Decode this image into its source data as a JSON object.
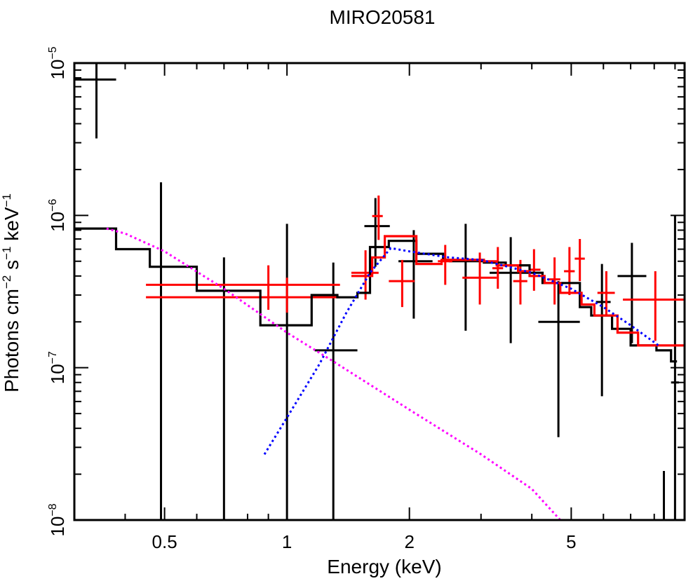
{
  "chart_data": {
    "type": "scatter",
    "title": "MIRO20581",
    "xlabel": "Energy (keV)",
    "ylabel": {
      "prefix": "Photons cm",
      "cm_exp": "−2",
      "s_part": " s",
      "s_exp": "−1",
      "kev_part": " keV",
      "kev_exp": "−1"
    },
    "x_scale": "log",
    "y_scale": "log",
    "xlim": [
      0.3,
      9.5
    ],
    "ylim": [
      1e-08,
      1e-05
    ],
    "x_ticks": [
      {
        "value": 0.5,
        "label": "0.5"
      },
      {
        "value": 1,
        "label": "1"
      },
      {
        "value": 2,
        "label": "2"
      },
      {
        "value": 5,
        "label": "5"
      }
    ],
    "y_ticks": [
      {
        "value": 1e-08,
        "base": "10",
        "exp": "−8"
      },
      {
        "value": 1e-07,
        "base": "10",
        "exp": "−7"
      },
      {
        "value": 1e-06,
        "base": "10",
        "exp": "−6"
      },
      {
        "value": 1e-05,
        "base": "10",
        "exp": "−5"
      }
    ],
    "series": [
      {
        "name": "data-black",
        "kind": "crosses",
        "color": "#000000",
        "points": [
          {
            "x": 0.34,
            "xlo": 0.3,
            "xhi": 0.38,
            "y": 7.8e-06,
            "ylo": 3.2e-06,
            "yhi": 1e-05
          },
          {
            "x": 0.49,
            "xlo": 0.49,
            "xhi": 0.49,
            "y": 5.8e-07,
            "ylo": 1e-08,
            "yhi": 1.65e-06
          },
          {
            "x": 0.7,
            "xlo": 0.7,
            "xhi": 0.7,
            "y": 3.2e-07,
            "ylo": 1e-08,
            "yhi": 5.3e-07
          },
          {
            "x": 1.0,
            "xlo": 1.0,
            "xhi": 1.0,
            "y": 2.9e-07,
            "ylo": 1e-08,
            "yhi": 8.8e-07
          },
          {
            "x": 1.3,
            "xlo": 1.17,
            "xhi": 1.49,
            "y": 1.3e-07,
            "ylo": 1e-08,
            "yhi": 4.9e-07
          },
          {
            "x": 1.65,
            "xlo": 1.55,
            "xhi": 1.79,
            "y": 8.5e-07,
            "ylo": 4.6e-07,
            "yhi": 1.3e-06
          },
          {
            "x": 2.05,
            "xlo": 1.88,
            "xhi": 2.28,
            "y": 5e-07,
            "ylo": 2.1e-07,
            "yhi": 8e-07
          },
          {
            "x": 2.75,
            "xlo": 2.5,
            "xhi": 3.05,
            "y": 5e-07,
            "ylo": 1.75e-07,
            "yhi": 8.8e-07
          },
          {
            "x": 3.55,
            "xlo": 3.15,
            "xhi": 3.95,
            "y": 4.2e-07,
            "ylo": 1.45e-07,
            "yhi": 7.2e-07
          },
          {
            "x": 4.65,
            "xlo": 4.15,
            "xhi": 5.25,
            "y": 2e-07,
            "ylo": 3.5e-08,
            "yhi": 3.7e-07
          },
          {
            "x": 5.95,
            "xlo": 5.75,
            "xhi": 6.25,
            "y": 2.7e-07,
            "ylo": 6.5e-08,
            "yhi": 4.8e-07
          },
          {
            "x": 7.05,
            "xlo": 6.5,
            "xhi": 7.65,
            "y": 4e-07,
            "ylo": 1.45e-07,
            "yhi": 6.6e-07
          },
          {
            "x": 8.45,
            "xlo": 8.45,
            "xhi": 8.45,
            "y": 1e-08,
            "ylo": 1e-08,
            "yhi": 2.1e-08
          },
          {
            "x": 9.0,
            "xlo": 8.8,
            "xhi": 9.2,
            "y": 8e-08,
            "ylo": 1e-08,
            "yhi": 1e-06
          }
        ]
      },
      {
        "name": "data-red",
        "kind": "crosses",
        "color": "#ff0000",
        "points": [
          {
            "x": 0.9,
            "xlo": 0.45,
            "xhi": 1.35,
            "y": 3.5e-07,
            "ylo": 2.4e-07,
            "yhi": 4.7e-07
          },
          {
            "x": 1.0,
            "xlo": 0.45,
            "xhi": 1.35,
            "y": 2.9e-07,
            "ylo": 2.3e-07,
            "yhi": 3.9e-07
          },
          {
            "x": 1.56,
            "xlo": 1.44,
            "xhi": 1.68,
            "y": 4.2e-07,
            "ylo": 2.8e-07,
            "yhi": 5.9e-07
          },
          {
            "x": 1.68,
            "xlo": 1.62,
            "xhi": 1.72,
            "y": 9.9e-07,
            "ylo": 6.9e-07,
            "yhi": 1.35e-06
          },
          {
            "x": 1.92,
            "xlo": 1.78,
            "xhi": 2.06,
            "y": 3.7e-07,
            "ylo": 2.5e-07,
            "yhi": 5.1e-07
          },
          {
            "x": 2.45,
            "xlo": 2.35,
            "xhi": 2.55,
            "y": 5e-07,
            "ylo": 3.5e-07,
            "yhi": 6.4e-07
          },
          {
            "x": 2.98,
            "xlo": 2.7,
            "xhi": 3.28,
            "y": 3.9e-07,
            "ylo": 2.6e-07,
            "yhi": 5.7e-07
          },
          {
            "x": 3.3,
            "xlo": 3.2,
            "xhi": 3.4,
            "y": 4.5e-07,
            "ylo": 3.3e-07,
            "yhi": 6.2e-07
          },
          {
            "x": 3.75,
            "xlo": 3.6,
            "xhi": 3.9,
            "y": 3.7e-07,
            "ylo": 2.6e-07,
            "yhi": 5.1e-07
          },
          {
            "x": 4.05,
            "xlo": 3.95,
            "xhi": 4.2,
            "y": 4.4e-07,
            "ylo": 3.2e-07,
            "yhi": 6e-07
          },
          {
            "x": 4.55,
            "xlo": 4.4,
            "xhi": 4.7,
            "y": 3.8e-07,
            "ylo": 2.6e-07,
            "yhi": 5.3e-07
          },
          {
            "x": 4.95,
            "xlo": 4.8,
            "xhi": 5.1,
            "y": 4.3e-07,
            "ylo": 3e-07,
            "yhi": 6.2e-07
          },
          {
            "x": 5.25,
            "xlo": 5.1,
            "xhi": 5.4,
            "y": 5.2e-07,
            "ylo": 3.7e-07,
            "yhi": 7e-07
          },
          {
            "x": 6.1,
            "xlo": 5.8,
            "xhi": 6.4,
            "y": 3.1e-07,
            "ylo": 2.2e-07,
            "yhi": 4.3e-07
          },
          {
            "x": 8.05,
            "xlo": 6.7,
            "xhi": 9.5,
            "y": 2.8e-07,
            "ylo": 1.5e-07,
            "yhi": 4.3e-07
          }
        ]
      },
      {
        "name": "model-black",
        "kind": "step",
        "color": "#000000",
        "x_edges": [
          0.3,
          0.38,
          0.46,
          0.6,
          0.86,
          1.15,
          1.33,
          1.49,
          1.6,
          1.78,
          2.08,
          2.42,
          3.05,
          3.45,
          3.95,
          4.25,
          5.25,
          5.6,
          6.3,
          7.0,
          8.1,
          8.8,
          9.1
        ],
        "values": [
          8.2e-07,
          6e-07,
          4.6e-07,
          3.2e-07,
          1.9e-07,
          3e-07,
          2.9e-07,
          3.1e-07,
          6.2e-07,
          6.8e-07,
          5.6e-07,
          5.1e-07,
          4.9e-07,
          4.7e-07,
          4.2e-07,
          3.6e-07,
          2.5e-07,
          2.2e-07,
          1.8e-07,
          1.4e-07,
          1.3e-07,
          1.1e-07
        ]
      },
      {
        "name": "model-red",
        "kind": "step",
        "color": "#ff0000",
        "x_edges": [
          1.44,
          1.62,
          1.74,
          2.08,
          2.4,
          3.05,
          3.28,
          3.7,
          3.95,
          4.3,
          4.7,
          5.3,
          5.7,
          6.5,
          7.3,
          8.5,
          9.5
        ],
        "values": [
          4e-07,
          5.3e-07,
          7.3e-07,
          4.8e-07,
          5.1e-07,
          5e-07,
          4.7e-07,
          4.3e-07,
          4e-07,
          3.6e-07,
          3.1e-07,
          2.6e-07,
          2.2e-07,
          1.7e-07,
          1.4e-07,
          1.4e-07
        ]
      },
      {
        "name": "component-magenta",
        "kind": "dotted-line",
        "color": "#ff00ff",
        "points": [
          [
            0.36,
            8.2e-07
          ],
          [
            0.4,
            7.6e-07
          ],
          [
            0.5,
            5.8e-07
          ],
          [
            0.7,
            3.3e-07
          ],
          [
            1.0,
            1.7e-07
          ],
          [
            1.3,
            1.1e-07
          ],
          [
            2.0,
            5.3e-08
          ],
          [
            3.0,
            2.7e-08
          ],
          [
            4.0,
            1.6e-08
          ],
          [
            4.7,
            1e-08
          ]
        ]
      },
      {
        "name": "component-blue",
        "kind": "dotted-line",
        "color": "#0000ff",
        "points": [
          [
            0.88,
            2.7e-08
          ],
          [
            1.0,
            4.7e-08
          ],
          [
            1.2,
            1.05e-07
          ],
          [
            1.4,
            2.3e-07
          ],
          [
            1.6,
            4.2e-07
          ],
          [
            1.8,
            6.1e-07
          ],
          [
            2.0,
            5.8e-07
          ],
          [
            2.5,
            5.3e-07
          ],
          [
            3.0,
            5.1e-07
          ],
          [
            4.0,
            4.2e-07
          ],
          [
            5.0,
            3.3e-07
          ],
          [
            6.0,
            2.5e-07
          ],
          [
            7.0,
            1.9e-07
          ],
          [
            8.2,
            1.4e-07
          ]
        ]
      }
    ]
  }
}
